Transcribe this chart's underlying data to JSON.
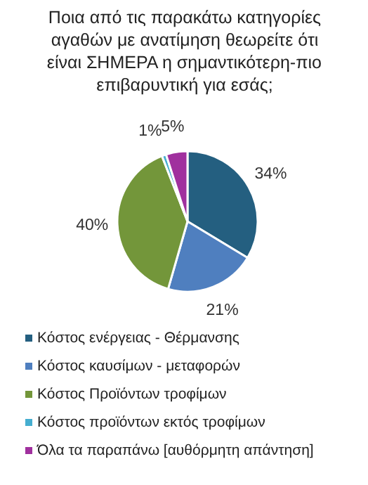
{
  "chart_data": {
    "type": "pie",
    "title": "Ποια από τις παρακάτω κατηγορίες αγαθών με ανατίμηση θεωρείτε ότι είναι ΣΗΜΕΡΑ η σημαντικότερη-πιο επιβαρυντική για εσάς;",
    "categories": [
      "Κόστος ενέργειας - Θέρμανσης",
      "Κόστος καυσίμων - μεταφορών",
      "Κόστος Προϊόντων τροφίμων",
      "Κόστος προϊόντων εκτός τροφίμων",
      "Όλα τα παραπάνω [αυθόρμητη απάντηση]"
    ],
    "values": [
      34,
      21,
      40,
      1,
      5
    ],
    "value_labels": [
      "34%",
      "21%",
      "40%",
      "1%",
      "5%"
    ],
    "colors": [
      "#245f80",
      "#4f7fbf",
      "#73963a",
      "#45aed0",
      "#a0309e"
    ],
    "legend": "bottom"
  }
}
